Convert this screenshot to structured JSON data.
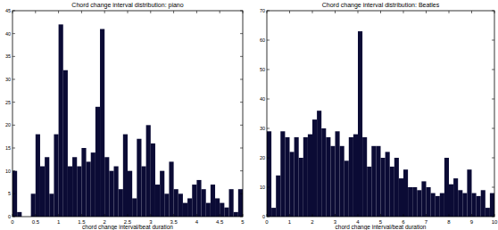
{
  "chart_data": [
    {
      "type": "histogram",
      "title": "Chord change interval distribution: piano",
      "x_label": "chord change interval/beat duration",
      "bins": [
        0,
        0.1,
        0.2,
        0.3,
        0.4,
        0.5,
        0.6,
        0.7,
        0.8,
        0.9,
        1,
        1.1,
        1.2,
        1.3,
        1.4,
        1.5,
        1.6,
        1.7,
        1.8,
        1.9,
        2,
        2.1,
        2.2,
        2.3,
        2.4,
        2.5,
        2.6,
        2.7,
        2.8,
        2.9,
        3,
        3.1,
        3.2,
        3.3,
        3.4,
        3.5,
        3.6,
        3.7,
        3.8,
        3.9,
        4,
        4.1,
        4.2,
        4.3,
        4.4,
        4.5,
        4.6,
        4.7,
        4.8,
        4.9,
        5
      ],
      "values": [
        10,
        1,
        0,
        0,
        5,
        18,
        11,
        13,
        5,
        18,
        42,
        32,
        11,
        13,
        11,
        15,
        12,
        14,
        24,
        41,
        13,
        10,
        11,
        6,
        18,
        10,
        4,
        17,
        11,
        20,
        16,
        7,
        10,
        5,
        12,
        6,
        5,
        3,
        4,
        7,
        8,
        6,
        3,
        7,
        4,
        3,
        2,
        6,
        1,
        6
      ],
      "color": "#0b0b35",
      "xlim": [
        0,
        5
      ],
      "ylim": [
        0,
        45
      ],
      "xticks": [
        0,
        0.5,
        1,
        1.5,
        2,
        2.5,
        3,
        3.5,
        4,
        4.5,
        5
      ],
      "yticks": [
        0,
        5,
        10,
        15,
        20,
        25,
        30,
        35,
        40,
        45
      ]
    },
    {
      "type": "histogram",
      "title": "Chord change interval distribution: Beatles",
      "x_label": "chord change interval/beat duration",
      "bins": [
        0,
        0.2,
        0.4,
        0.6,
        0.8,
        1,
        1.2,
        1.4,
        1.6,
        1.8,
        2,
        2.2,
        2.4,
        2.6,
        2.8,
        3,
        3.2,
        3.4,
        3.6,
        3.8,
        4,
        4.2,
        4.4,
        4.6,
        4.8,
        5,
        5.2,
        5.4,
        5.6,
        5.8,
        6,
        6.2,
        6.4,
        6.6,
        6.8,
        7,
        7.2,
        7.4,
        7.6,
        7.8,
        8,
        8.2,
        8.4,
        8.6,
        8.8,
        9,
        9.2,
        9.4,
        9.6,
        9.8,
        10
      ],
      "values": [
        29,
        3,
        14,
        29,
        27,
        22,
        27,
        20,
        27,
        28,
        33,
        36,
        30,
        27,
        24,
        29,
        24,
        19,
        27,
        28,
        63,
        27,
        17,
        24,
        24,
        20,
        22,
        17,
        20,
        13,
        16,
        10,
        10,
        9,
        12,
        10,
        8,
        7,
        8,
        20,
        11,
        13,
        9,
        8,
        16,
        8,
        7,
        9,
        3,
        8
      ],
      "color": "#0b0b35",
      "xlim": [
        0,
        10
      ],
      "ylim": [
        0,
        70
      ],
      "xticks": [
        0,
        1,
        2,
        3,
        4,
        5,
        6,
        7,
        8,
        9,
        10
      ],
      "yticks": [
        0,
        10,
        20,
        30,
        40,
        50,
        60,
        70
      ]
    }
  ]
}
